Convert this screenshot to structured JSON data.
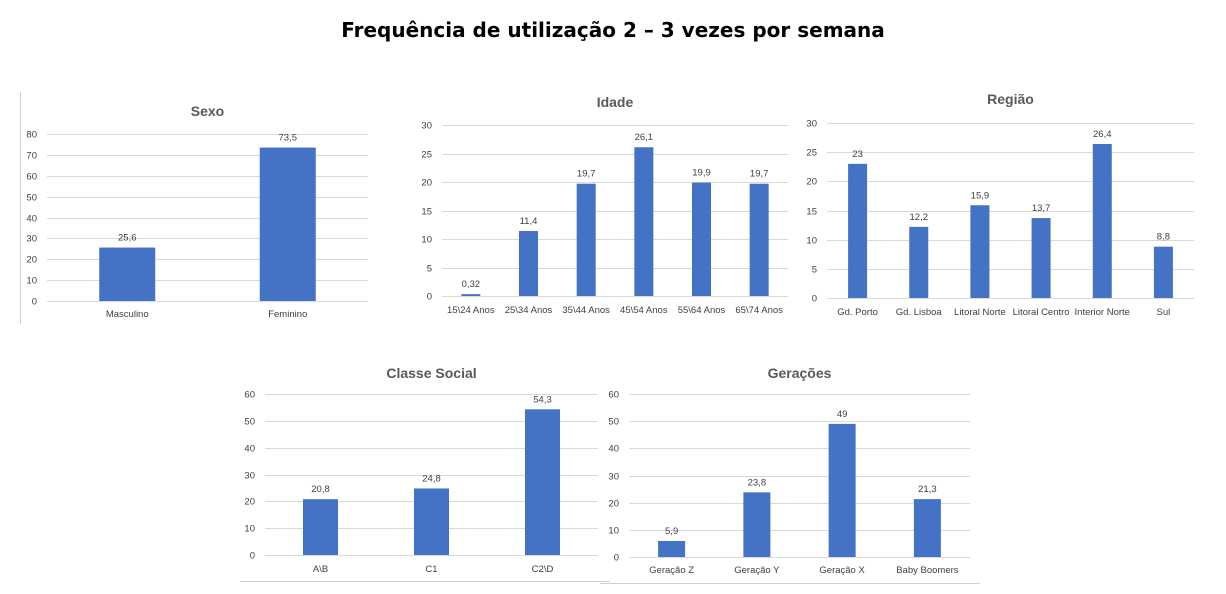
{
  "page_title": "Frequência de utilização 2 – 3 vezes por semana",
  "colors": {
    "bar": "#4472C4"
  },
  "chart_data": [
    {
      "id": "sexo",
      "type": "bar",
      "title": "Sexo",
      "categories": [
        "Masculino",
        "Feminino"
      ],
      "values": [
        25.6,
        73.5
      ],
      "labels": [
        "25,6",
        "73,5"
      ],
      "ylim": [
        0,
        80
      ],
      "yticks": [
        0,
        10,
        20,
        30,
        40,
        50,
        60,
        70,
        80
      ],
      "grid": true
    },
    {
      "id": "idade",
      "type": "bar",
      "title": "Idade",
      "categories": [
        "15\\24 Anos",
        "25\\34 Anos",
        "35\\44 Anos",
        "45\\54 Anos",
        "55\\64 Anos",
        "65\\74 Anos"
      ],
      "values": [
        0.32,
        11.4,
        19.7,
        26.1,
        19.9,
        19.7
      ],
      "labels": [
        "0,32",
        "11,4",
        "19,7",
        "26,1",
        "19,9",
        "19,7"
      ],
      "ylim": [
        0,
        30
      ],
      "yticks": [
        0,
        5,
        10,
        15,
        20,
        25,
        30
      ],
      "grid": true
    },
    {
      "id": "regiao",
      "type": "bar",
      "title": "Região",
      "categories": [
        "Gd. Porto",
        "Gd. Lisboa",
        "Litoral Norte",
        "Litoral Centro",
        "Interior Norte",
        "Sul"
      ],
      "values": [
        23,
        12.2,
        15.9,
        13.7,
        26.4,
        8.8
      ],
      "labels": [
        "23",
        "12,2",
        "15,9",
        "13,7",
        "26,4",
        "8,8"
      ],
      "ylim": [
        0,
        30
      ],
      "yticks": [
        0,
        5,
        10,
        15,
        20,
        25,
        30
      ],
      "grid": true
    },
    {
      "id": "classe-social",
      "type": "bar",
      "title": "Classe Social",
      "categories": [
        "A\\B",
        "C1",
        "C2\\D"
      ],
      "values": [
        20.8,
        24.8,
        54.3
      ],
      "labels": [
        "20,8",
        "24,8",
        "54,3"
      ],
      "ylim": [
        0,
        60
      ],
      "yticks": [
        0,
        10,
        20,
        30,
        40,
        50,
        60
      ],
      "grid": true
    },
    {
      "id": "geracoes",
      "type": "bar",
      "title": "Gerações",
      "categories": [
        "Geração Z",
        "Geração Y",
        "Geração X",
        "Baby Boomers"
      ],
      "values": [
        5.9,
        23.8,
        49,
        21.3
      ],
      "labels": [
        "5,9",
        "23,8",
        "49",
        "21,3"
      ],
      "ylim": [
        0,
        60
      ],
      "yticks": [
        0,
        10,
        20,
        30,
        40,
        50,
        60
      ],
      "grid": true
    }
  ]
}
